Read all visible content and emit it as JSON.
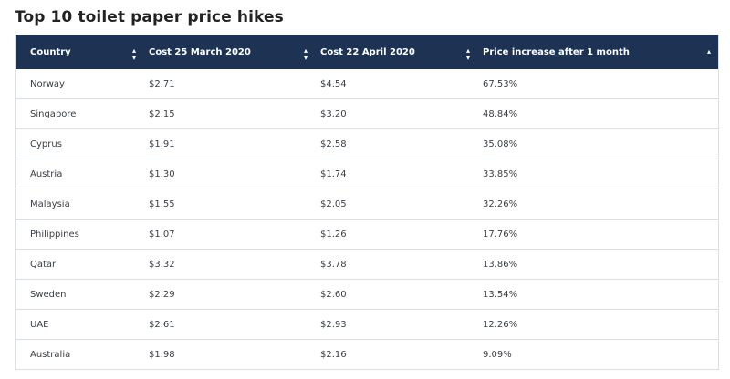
{
  "title": "Top 10 toilet paper price hikes",
  "colors": {
    "header_bg": "#1e3354",
    "header_text": "#ffffff",
    "row_border": "#dcdfe2"
  },
  "icons": {
    "sort_both": "sort-both-icon",
    "sort_asc": "sort-up-icon"
  },
  "chart_data": {
    "type": "table",
    "columns": [
      "Country",
      "Cost 25 March 2020",
      "Cost 22 April 2020",
      "Price increase after 1 month"
    ],
    "sorted_column": "Price increase after 1 month",
    "rows": [
      [
        "Norway",
        "$2.71",
        "$4.54",
        "67.53%"
      ],
      [
        "Singapore",
        "$2.15",
        "$3.20",
        "48.84%"
      ],
      [
        "Cyprus",
        "$1.91",
        "$2.58",
        "35.08%"
      ],
      [
        "Austria",
        "$1.30",
        "$1.74",
        "33.85%"
      ],
      [
        "Malaysia",
        "$1.55",
        "$2.05",
        "32.26%"
      ],
      [
        "Philippines",
        "$1.07",
        "$1.26",
        "17.76%"
      ],
      [
        "Qatar",
        "$3.32",
        "$3.78",
        "13.86%"
      ],
      [
        "Sweden",
        "$2.29",
        "$2.60",
        "13.54%"
      ],
      [
        "UAE",
        "$2.61",
        "$2.93",
        "12.26%"
      ],
      [
        "Australia",
        "$1.98",
        "$2.16",
        "9.09%"
      ]
    ]
  }
}
